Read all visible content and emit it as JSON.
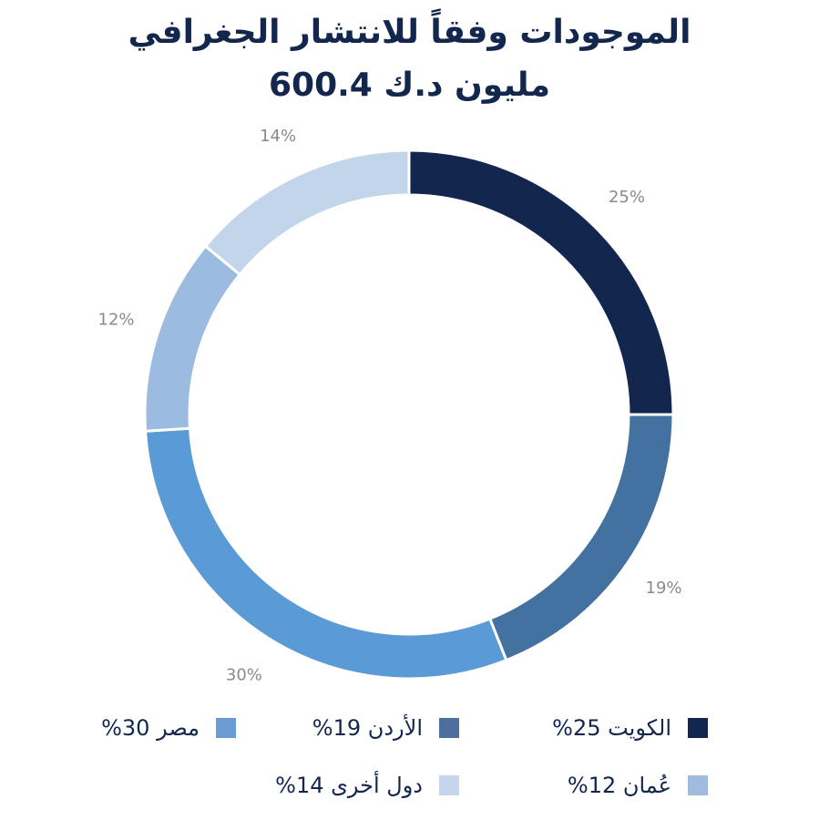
{
  "title": {
    "line1": "الموجودات وفقاً للانتشار الجغرافي",
    "line2": "600.4 مليون د.ك"
  },
  "chart_data": {
    "type": "pie",
    "variant": "donut",
    "title": "الموجودات وفقاً للانتشار الجغرافي",
    "subtitle": "600.4 مليون د.ك",
    "slices": [
      {
        "name": "الكويت",
        "value": 25,
        "label": "25%",
        "color": "#13264d"
      },
      {
        "name": "الأردن",
        "value": 19,
        "label": "19%",
        "color": "#4472a0"
      },
      {
        "name": "مصر",
        "value": 30,
        "label": "30%",
        "color": "#5b9bd5"
      },
      {
        "name": "عُمان",
        "value": 12,
        "label": "12%",
        "color": "#9bbbe0"
      },
      {
        "name": "دول أخرى",
        "value": 14,
        "label": "14%",
        "color": "#c3d5eb"
      }
    ],
    "legend": [
      {
        "text": "الكويت 25%",
        "color": "#13264d"
      },
      {
        "text": "الأردن  19%",
        "color": "#4d6f9e"
      },
      {
        "text": "مصر 30%",
        "color": "#6b9bd2"
      },
      {
        "text": "عُمان 12%",
        "color": "#9fbbe0"
      },
      {
        "text": "دول أخرى 14%",
        "color": "#c5d6ec"
      }
    ],
    "legend_placement": "bottom"
  }
}
